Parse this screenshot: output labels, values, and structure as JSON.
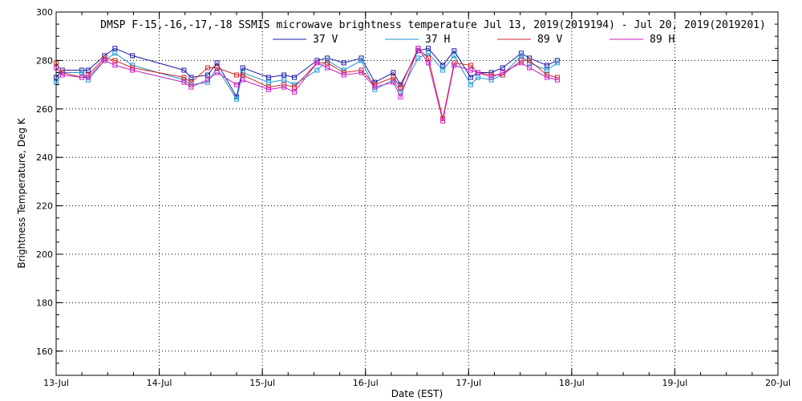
{
  "chart_data": {
    "type": "line",
    "title": "DMSP F-15,-16,-17,-18 SSMIS microwave brightness temperature Jul 13, 2019(2019194) - Jul 20, 2019(2019201)",
    "xlabel": "Date (EST)",
    "ylabel": "Brightness Temperature, Deg K",
    "ylim": [
      150,
      300
    ],
    "y_ticks": [
      160,
      180,
      200,
      220,
      240,
      260,
      280,
      300
    ],
    "xlim": [
      0,
      7
    ],
    "x_ticks": [
      {
        "value": 0,
        "label": "13-Jul"
      },
      {
        "value": 1,
        "label": "14-Jul"
      },
      {
        "value": 2,
        "label": "15-Jul"
      },
      {
        "value": 3,
        "label": "16-Jul"
      },
      {
        "value": 4,
        "label": "17-Jul"
      },
      {
        "value": 5,
        "label": "18-Jul"
      },
      {
        "value": 6,
        "label": "19-Jul"
      },
      {
        "value": 7,
        "label": "20-Jul"
      }
    ],
    "grid": true,
    "legend_position": "top-center",
    "x": [
      0.0,
      0.06,
      0.25,
      0.31,
      0.47,
      0.57,
      0.74,
      1.24,
      1.31,
      1.47,
      1.56,
      1.75,
      1.81,
      2.06,
      2.21,
      2.31,
      2.53,
      2.63,
      2.79,
      2.96,
      3.09,
      3.27,
      3.34,
      3.51,
      3.61,
      3.75,
      3.86,
      4.02,
      4.09,
      4.22,
      4.33,
      4.51,
      4.59,
      4.76,
      4.86
    ],
    "series": [
      {
        "name": "37 V",
        "color": "#1a1aa8",
        "values": [
          273,
          276,
          276,
          276,
          282,
          285,
          282,
          276,
          273,
          274,
          279,
          265,
          277,
          273,
          274,
          273,
          280,
          281,
          279,
          281,
          271,
          275,
          270,
          284,
          285,
          278,
          284,
          273,
          275,
          275,
          277,
          283,
          281,
          278,
          280
        ]
      },
      {
        "name": "37 H",
        "color": "#1f96d2",
        "values": [
          271,
          275,
          275,
          272,
          280,
          283,
          278,
          272,
          270,
          271,
          277,
          264,
          275,
          271,
          272,
          270,
          276,
          280,
          276,
          280,
          268,
          272,
          267,
          281,
          283,
          276,
          282,
          270,
          273,
          272,
          274,
          282,
          279,
          276,
          279
        ]
      },
      {
        "name": "89 V",
        "color": "#d22828",
        "values": [
          279,
          275,
          273,
          274,
          281,
          280,
          277,
          273,
          271,
          277,
          277,
          274,
          274,
          269,
          270,
          269,
          279,
          279,
          275,
          276,
          270,
          273,
          269,
          285,
          281,
          256,
          279,
          278,
          275,
          274,
          274,
          280,
          280,
          274,
          273
        ]
      },
      {
        "name": "89 H",
        "color": "#c81ec8",
        "values": [
          277,
          274,
          273,
          273,
          280,
          278,
          276,
          271,
          269,
          272,
          275,
          270,
          272,
          268,
          269,
          267,
          279,
          277,
          274,
          275,
          269,
          271,
          265,
          285,
          279,
          255,
          278,
          276,
          275,
          273,
          275,
          279,
          277,
          273,
          272
        ]
      }
    ]
  }
}
